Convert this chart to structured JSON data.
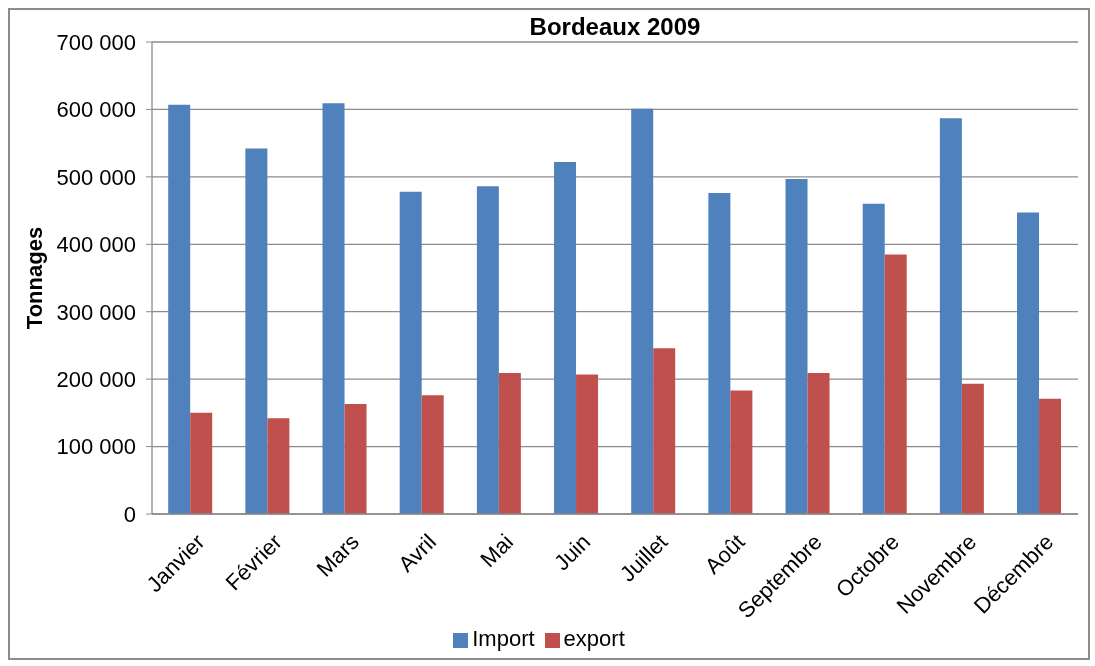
{
  "chart_data": {
    "type": "bar",
    "title": "Bordeaux 2009",
    "ylabel": "Tonnages",
    "categories": [
      "Janvier",
      "Février",
      "Mars",
      "Avril",
      "Mai",
      "Juin",
      "Juillet",
      "Août",
      "Septembre",
      "Octobre",
      "Novembre",
      "Décembre"
    ],
    "series": [
      {
        "name": "Import",
        "color": "#4f81bd",
        "values": [
          607000,
          542000,
          609000,
          478000,
          486000,
          522000,
          601000,
          476000,
          497000,
          460000,
          587000,
          447000
        ]
      },
      {
        "name": "export",
        "color": "#c0504d",
        "values": [
          150000,
          142000,
          163000,
          176000,
          209000,
          207000,
          246000,
          183000,
          209000,
          385000,
          193000,
          171000
        ]
      }
    ],
    "ylim": [
      0,
      700000
    ],
    "yticks": [
      0,
      {
        "value": 100000,
        "label": "100 000"
      },
      {
        "value": 200000,
        "label": "200 000"
      },
      {
        "value": 300000,
        "label": "300 000"
      },
      {
        "value": 400000,
        "label": "400 000"
      },
      {
        "value": 500000,
        "label": "500 000"
      },
      {
        "value": 600000,
        "label": "600 000"
      },
      {
        "value": 700000,
        "label": "700 000"
      }
    ],
    "grid": "y",
    "legend": "bottom"
  }
}
